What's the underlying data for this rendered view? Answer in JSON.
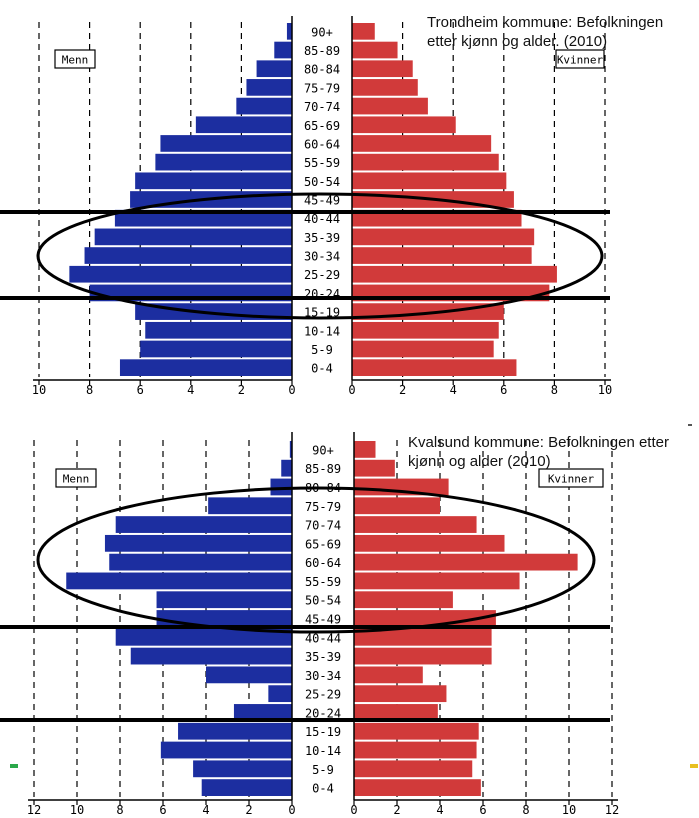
{
  "colors": {
    "men": "#1c2ea0",
    "women": "#d13a3a",
    "axis": "#000000",
    "marker_left": "#2aa84a",
    "marker_right": "#e8c020"
  },
  "chart_data": [
    {
      "type": "bar",
      "title": "Trondheim kommune: Befolkningen etter kjønn og alder. (2010)",
      "left_label": "Menn",
      "right_label": "Kvinner",
      "age_groups": [
        "0-4",
        "5-9",
        "10-14",
        "15-19",
        "20-24",
        "25-29",
        "30-34",
        "35-39",
        "40-44",
        "45-49",
        "50-54",
        "55-59",
        "60-64",
        "65-69",
        "70-74",
        "75-79",
        "80-84",
        "85-89",
        "90+"
      ],
      "series": [
        {
          "name": "Menn",
          "values": [
            6.8,
            6.0,
            5.8,
            6.2,
            8.0,
            8.8,
            8.2,
            7.8,
            7.0,
            6.4,
            6.2,
            5.4,
            5.2,
            3.8,
            2.2,
            1.8,
            1.4,
            0.7,
            0.2
          ]
        },
        {
          "name": "Kvinner",
          "values": [
            6.5,
            5.6,
            5.8,
            6.0,
            7.8,
            8.1,
            7.1,
            7.2,
            6.7,
            6.4,
            6.1,
            5.8,
            5.5,
            4.1,
            3.0,
            2.6,
            2.4,
            1.8,
            0.9
          ]
        }
      ],
      "left_ticks": [
        10,
        8,
        6,
        4,
        2,
        0
      ],
      "right_ticks": [
        0,
        2,
        4,
        6,
        8,
        10
      ],
      "xlim": [
        0,
        10
      ],
      "grid": true
    },
    {
      "type": "bar",
      "title": "Kvalsund kommune: Befolkningen etter kjønn og alder (2010)",
      "left_label": "Menn",
      "right_label": "Kvinner",
      "age_groups": [
        "0-4",
        "5-9",
        "10-14",
        "15-19",
        "20-24",
        "25-29",
        "30-34",
        "35-39",
        "40-44",
        "45-49",
        "50-54",
        "55-59",
        "60-64",
        "65-69",
        "70-74",
        "75-79",
        "80-84",
        "85-89",
        "90+"
      ],
      "series": [
        {
          "name": "Menn",
          "values": [
            4.2,
            4.6,
            6.1,
            5.3,
            2.7,
            1.1,
            4.0,
            7.5,
            8.2,
            6.3,
            6.3,
            10.5,
            8.5,
            8.7,
            8.2,
            3.9,
            1.0,
            0.5,
            0.1
          ]
        },
        {
          "name": "Kvinner",
          "values": [
            5.9,
            5.5,
            5.7,
            5.8,
            3.9,
            4.3,
            3.2,
            6.4,
            6.4,
            6.6,
            4.6,
            7.7,
            10.4,
            7.0,
            5.7,
            4.0,
            4.4,
            1.9,
            1.0
          ]
        }
      ],
      "left_ticks": [
        12,
        10,
        8,
        6,
        4,
        2,
        0
      ],
      "right_ticks": [
        0,
        2,
        4,
        6,
        8,
        10,
        12
      ],
      "xlim": [
        0,
        12
      ],
      "grid": true
    }
  ]
}
